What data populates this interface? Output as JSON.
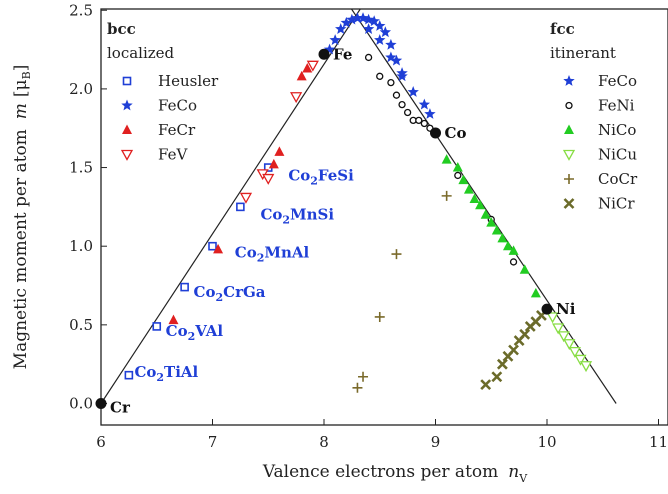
{
  "chart_data": {
    "type": "scatter",
    "title": "",
    "xlabel": "Valence electrons per atom",
    "xlabel_symbol": "n",
    "xlabel_sub": "V",
    "ylabel": "Magnetic moment per atom",
    "ylabel_symbol": "m",
    "ylabel_unit": "[μ",
    "ylabel_unit_sub": "B",
    "ylabel_unit_end": "]",
    "xlim": [
      6,
      11
    ],
    "ylim": [
      -0.1,
      2.6
    ],
    "xticks": [
      6,
      7,
      8,
      9,
      10,
      11
    ],
    "xtick_labels": [
      "6",
      "7",
      "8",
      "9",
      "10",
      "11"
    ],
    "yticks": [
      0.0,
      0.5,
      1.0,
      1.5,
      2.0,
      2.5
    ],
    "ytick_labels": [
      "0.0",
      "0.5",
      "1.0",
      "1.5",
      "2.0",
      "2.5"
    ],
    "grid": false,
    "lines": [
      {
        "name": "bcc",
        "x": [
          6,
          8.42
        ],
        "y": [
          0,
          2.61
        ]
      },
      {
        "name": "fcc",
        "x": [
          8.15,
          10.62
        ],
        "y": [
          2.61,
          0
        ]
      }
    ],
    "groups": [
      {
        "title": "bcc",
        "subtitle": "localized",
        "position": "top-left"
      },
      {
        "title": "fcc",
        "subtitle": "itinerant",
        "position": "top-right"
      }
    ],
    "series": [
      {
        "name": "Heusler",
        "marker": "square-open",
        "color": "#1f3fd6",
        "group": "bcc",
        "x": [
          6.25,
          6.5,
          6.75,
          7.0,
          7.25,
          7.5
        ],
        "y": [
          0.18,
          0.49,
          0.74,
          1.0,
          1.25,
          1.5
        ]
      },
      {
        "name": "FeCo",
        "marker": "star",
        "color": "#1f3fd6",
        "group": "bcc",
        "x": [
          8.05,
          8.1,
          8.15,
          8.2,
          8.25,
          8.3,
          8.35,
          8.4,
          8.45,
          8.5,
          8.55,
          8.6,
          8.65,
          8.7
        ],
        "y": [
          2.25,
          2.31,
          2.38,
          2.42,
          2.44,
          2.45,
          2.45,
          2.44,
          2.43,
          2.4,
          2.36,
          2.28,
          2.18,
          2.1
        ]
      },
      {
        "name": "FeCr",
        "marker": "triangle",
        "color": "#e02020",
        "group": "bcc",
        "x": [
          6.65,
          7.05,
          7.55,
          7.6,
          7.8,
          7.85
        ],
        "y": [
          0.53,
          0.98,
          1.52,
          1.6,
          2.08,
          2.13
        ]
      },
      {
        "name": "FeV",
        "marker": "triangle-down-open",
        "color": "#e02020",
        "group": "bcc",
        "x": [
          7.3,
          7.45,
          7.5,
          7.75,
          7.9
        ],
        "y": [
          1.31,
          1.46,
          1.43,
          1.95,
          2.15
        ]
      },
      {
        "name": "FeCo",
        "marker": "star",
        "color": "#1f3fd6",
        "group": "fcc",
        "x": [
          8.4,
          8.5,
          8.6,
          8.7,
          8.8,
          8.9,
          8.95
        ],
        "y": [
          2.38,
          2.31,
          2.2,
          2.08,
          1.98,
          1.9,
          1.84
        ]
      },
      {
        "name": "FeNi",
        "marker": "circle-open",
        "color": "#111111",
        "group": "fcc",
        "x": [
          8.4,
          8.5,
          8.6,
          8.65,
          8.7,
          8.75,
          8.8,
          8.85,
          8.9,
          8.95,
          9.0,
          9.2,
          9.5,
          9.7
        ],
        "y": [
          2.2,
          2.08,
          2.04,
          1.96,
          1.9,
          1.85,
          1.8,
          1.8,
          1.78,
          1.75,
          1.73,
          1.45,
          1.17,
          0.9
        ]
      },
      {
        "name": "NiCo",
        "marker": "triangle",
        "color": "#22cc22",
        "group": "fcc",
        "x": [
          9.1,
          9.2,
          9.25,
          9.3,
          9.35,
          9.4,
          9.45,
          9.5,
          9.55,
          9.6,
          9.65,
          9.7,
          9.8,
          9.9
        ],
        "y": [
          1.55,
          1.5,
          1.42,
          1.36,
          1.3,
          1.26,
          1.2,
          1.15,
          1.1,
          1.05,
          1.0,
          0.97,
          0.85,
          0.7
        ]
      },
      {
        "name": "NiCu",
        "marker": "triangle-down-open",
        "color": "#88dd44",
        "group": "fcc",
        "x": [
          10.05,
          10.1,
          10.15,
          10.2,
          10.25,
          10.3,
          10.35
        ],
        "y": [
          0.55,
          0.48,
          0.43,
          0.38,
          0.33,
          0.28,
          0.24
        ]
      },
      {
        "name": "CoCr",
        "marker": "plus",
        "color": "#7a6a2a",
        "group": "fcc",
        "x": [
          8.3,
          8.35,
          8.5,
          8.65,
          9.1
        ],
        "y": [
          0.1,
          0.17,
          0.55,
          0.95,
          1.32
        ]
      },
      {
        "name": "NiCr",
        "marker": "cross",
        "color": "#6b6b2a",
        "group": "fcc",
        "x": [
          9.45,
          9.55,
          9.6,
          9.65,
          9.7,
          9.75,
          9.8,
          9.85,
          9.9,
          9.95
        ],
        "y": [
          0.12,
          0.17,
          0.25,
          0.3,
          0.34,
          0.4,
          0.44,
          0.49,
          0.52,
          0.56
        ]
      }
    ],
    "element_points": [
      {
        "label": "Cr",
        "x": 6.0,
        "y": 0.0,
        "label_side": "right-below"
      },
      {
        "label": "Fe",
        "x": 8.0,
        "y": 2.22,
        "label_side": "right"
      },
      {
        "label": "Co",
        "x": 9.0,
        "y": 1.72,
        "label_side": "right"
      },
      {
        "label": "Ni",
        "x": 10.0,
        "y": 0.6,
        "label_side": "right"
      }
    ],
    "compound_labels": [
      {
        "base": "Co",
        "sub": "2",
        "rest": "TiAl",
        "x": 6.3,
        "y": 0.2
      },
      {
        "base": "Co",
        "sub": "2",
        "rest": "VAl",
        "x": 6.58,
        "y": 0.46
      },
      {
        "base": "Co",
        "sub": "2",
        "rest": "CrGa",
        "x": 6.83,
        "y": 0.71
      },
      {
        "base": "Co",
        "sub": "2",
        "rest": "MnAl",
        "x": 7.2,
        "y": 0.96
      },
      {
        "base": "Co",
        "sub": "2",
        "rest": "MnSi",
        "x": 7.43,
        "y": 1.2
      },
      {
        "base": "Co",
        "sub": "2",
        "rest": "FeSi",
        "x": 7.68,
        "y": 1.45
      }
    ]
  }
}
